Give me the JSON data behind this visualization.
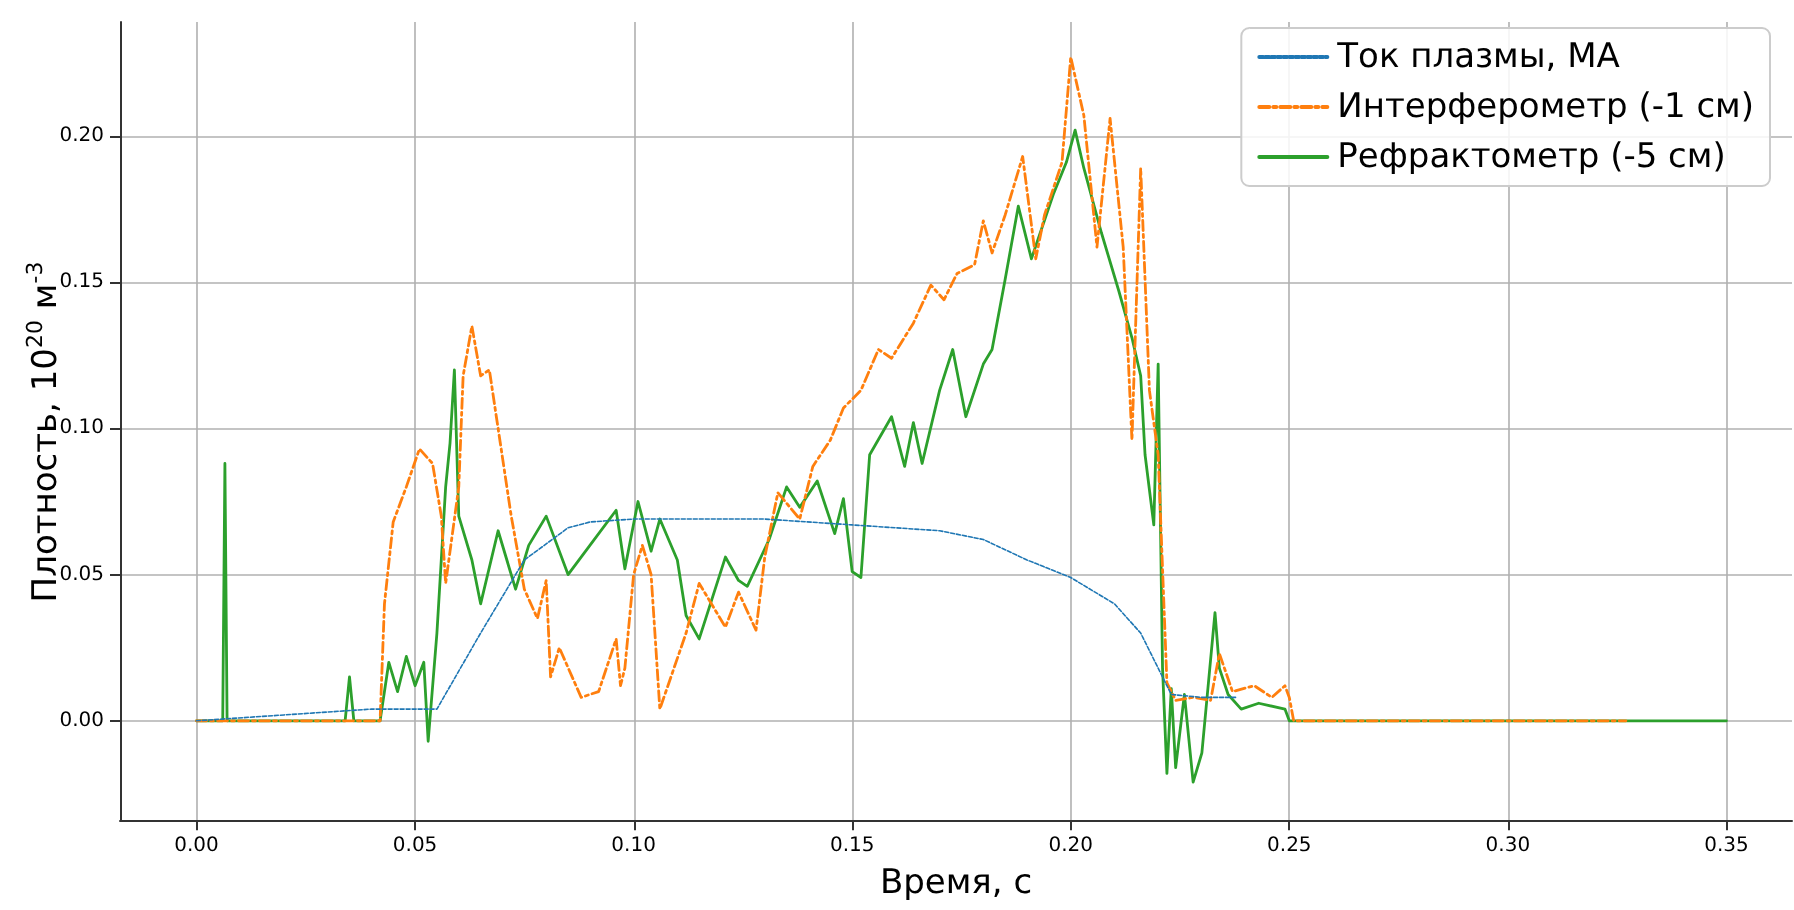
{
  "chart_data": {
    "type": "line",
    "xlabel": "Время, с",
    "ylabel": "Плотность, 10$^{20}$ м$^{-3}$",
    "xlim": [
      -0.0175,
      0.365
    ],
    "ylim": [
      -0.034,
      0.239
    ],
    "xticks": [
      {
        "value": 0,
        "label": "0.00"
      },
      {
        "value": 0.05,
        "label": "0.05"
      },
      {
        "value": 0.1,
        "label": "0.10"
      },
      {
        "value": 0.15,
        "label": "0.15"
      },
      {
        "value": 0.2,
        "label": "0.20"
      },
      {
        "value": 0.25,
        "label": "0.25"
      },
      {
        "value": 0.3,
        "label": "0.30"
      },
      {
        "value": 0.35,
        "label": "0.35"
      }
    ],
    "yticks": [
      {
        "value": 0,
        "label": "0.00"
      },
      {
        "value": 0.05,
        "label": "0.05"
      },
      {
        "value": 0.1,
        "label": "0.10"
      },
      {
        "value": 0.15,
        "label": "0.15"
      },
      {
        "value": 0.2,
        "label": "0.20"
      }
    ],
    "grid": true,
    "legend": "top right",
    "marker": "none",
    "series": [
      {
        "name": "Ток плазмы, МА",
        "color": "#1f77b4",
        "line_style": "dashed",
        "x": [
          0,
          0.02,
          0.04,
          0.055,
          0.065,
          0.075,
          0.085,
          0.09,
          0.1,
          0.13,
          0.15,
          0.17,
          0.18,
          0.19,
          0.2,
          0.21,
          0.216,
          0.22,
          0.223,
          0.23,
          0.238
        ],
        "values": [
          0,
          0.002,
          0.004,
          0.004,
          0.03,
          0.055,
          0.066,
          0.068,
          0.069,
          0.069,
          0.067,
          0.065,
          0.062,
          0.055,
          0.049,
          0.04,
          0.03,
          0.018,
          0.009,
          0.008,
          0.008
        ]
      },
      {
        "name": "Интерферометр (-1 см)",
        "color": "#ff7f0e",
        "line_style": "dashdot",
        "x": [
          0,
          0.042,
          0.0425,
          0.043,
          0.045,
          0.048,
          0.051,
          0.054,
          0.056,
          0.057,
          0.06,
          0.061,
          0.063,
          0.065,
          0.067,
          0.069,
          0.072,
          0.075,
          0.078,
          0.08,
          0.081,
          0.083,
          0.088,
          0.092,
          0.096,
          0.097,
          0.098,
          0.1,
          0.102,
          0.104,
          0.106,
          0.112,
          0.115,
          0.121,
          0.124,
          0.128,
          0.13,
          0.133,
          0.138,
          0.141,
          0.145,
          0.148,
          0.152,
          0.156,
          0.159,
          0.164,
          0.168,
          0.171,
          0.174,
          0.178,
          0.18,
          0.182,
          0.185,
          0.189,
          0.192,
          0.194,
          0.198,
          0.2,
          0.203,
          0.206,
          0.209,
          0.212,
          0.214,
          0.216,
          0.218,
          0.22,
          0.222,
          0.224,
          0.228,
          0.232,
          0.234,
          0.237,
          0.242,
          0.246,
          0.249,
          0.25,
          0.251,
          0.327
        ],
        "values": [
          0,
          0,
          0.02,
          0.04,
          0.068,
          0.08,
          0.093,
          0.088,
          0.07,
          0.047,
          0.08,
          0.118,
          0.135,
          0.118,
          0.12,
          0.1,
          0.07,
          0.045,
          0.035,
          0.048,
          0.015,
          0.025,
          0.008,
          0.01,
          0.028,
          0.012,
          0.018,
          0.05,
          0.06,
          0.05,
          0.004,
          0.03,
          0.047,
          0.032,
          0.044,
          0.031,
          0.056,
          0.078,
          0.069,
          0.087,
          0.096,
          0.107,
          0.113,
          0.127,
          0.124,
          0.136,
          0.149,
          0.144,
          0.153,
          0.156,
          0.171,
          0.16,
          0.173,
          0.193,
          0.158,
          0.173,
          0.191,
          0.227,
          0.207,
          0.162,
          0.206,
          0.162,
          0.096,
          0.189,
          0.113,
          0.091,
          0.013,
          0.007,
          0.008,
          0.007,
          0.023,
          0.01,
          0.012,
          0.008,
          0.012,
          0.008,
          0,
          0
        ]
      },
      {
        "name": "Рефрактометр (-5 см)",
        "color": "#2ca02c",
        "line_style": "solid",
        "x": [
          0,
          0.006,
          0.0065,
          0.007,
          0.034,
          0.035,
          0.036,
          0.042,
          0.044,
          0.046,
          0.048,
          0.05,
          0.052,
          0.053,
          0.055,
          0.057,
          0.058,
          0.059,
          0.06,
          0.063,
          0.065,
          0.069,
          0.073,
          0.076,
          0.08,
          0.085,
          0.09,
          0.096,
          0.098,
          0.101,
          0.104,
          0.106,
          0.11,
          0.112,
          0.115,
          0.121,
          0.124,
          0.126,
          0.131,
          0.135,
          0.138,
          0.142,
          0.146,
          0.148,
          0.15,
          0.152,
          0.154,
          0.159,
          0.162,
          0.164,
          0.166,
          0.17,
          0.173,
          0.176,
          0.18,
          0.182,
          0.185,
          0.188,
          0.191,
          0.196,
          0.199,
          0.201,
          0.203,
          0.207,
          0.211,
          0.214,
          0.216,
          0.217,
          0.219,
          0.22,
          0.221,
          0.222,
          0.223,
          0.224,
          0.226,
          0.228,
          0.23,
          0.233,
          0.234,
          0.236,
          0.239,
          0.243,
          0.249,
          0.25,
          0.35
        ],
        "values": [
          0,
          0,
          0.088,
          0,
          0,
          0.015,
          0,
          0,
          0.02,
          0.01,
          0.022,
          0.012,
          0.02,
          -0.007,
          0.03,
          0.08,
          0.095,
          0.12,
          0.07,
          0.055,
          0.04,
          0.065,
          0.045,
          0.06,
          0.07,
          0.05,
          0.06,
          0.072,
          0.052,
          0.075,
          0.058,
          0.069,
          0.055,
          0.036,
          0.028,
          0.056,
          0.048,
          0.046,
          0.062,
          0.08,
          0.073,
          0.082,
          0.064,
          0.076,
          0.051,
          0.049,
          0.091,
          0.104,
          0.087,
          0.102,
          0.088,
          0.113,
          0.127,
          0.104,
          0.122,
          0.127,
          0.151,
          0.176,
          0.158,
          0.18,
          0.191,
          0.202,
          0.189,
          0.167,
          0.147,
          0.131,
          0.118,
          0.091,
          0.067,
          0.122,
          0.018,
          -0.018,
          0.011,
          -0.016,
          0.009,
          -0.021,
          -0.011,
          0.037,
          0.018,
          0.009,
          0.004,
          0.006,
          0.004,
          0,
          0
        ]
      }
    ]
  }
}
